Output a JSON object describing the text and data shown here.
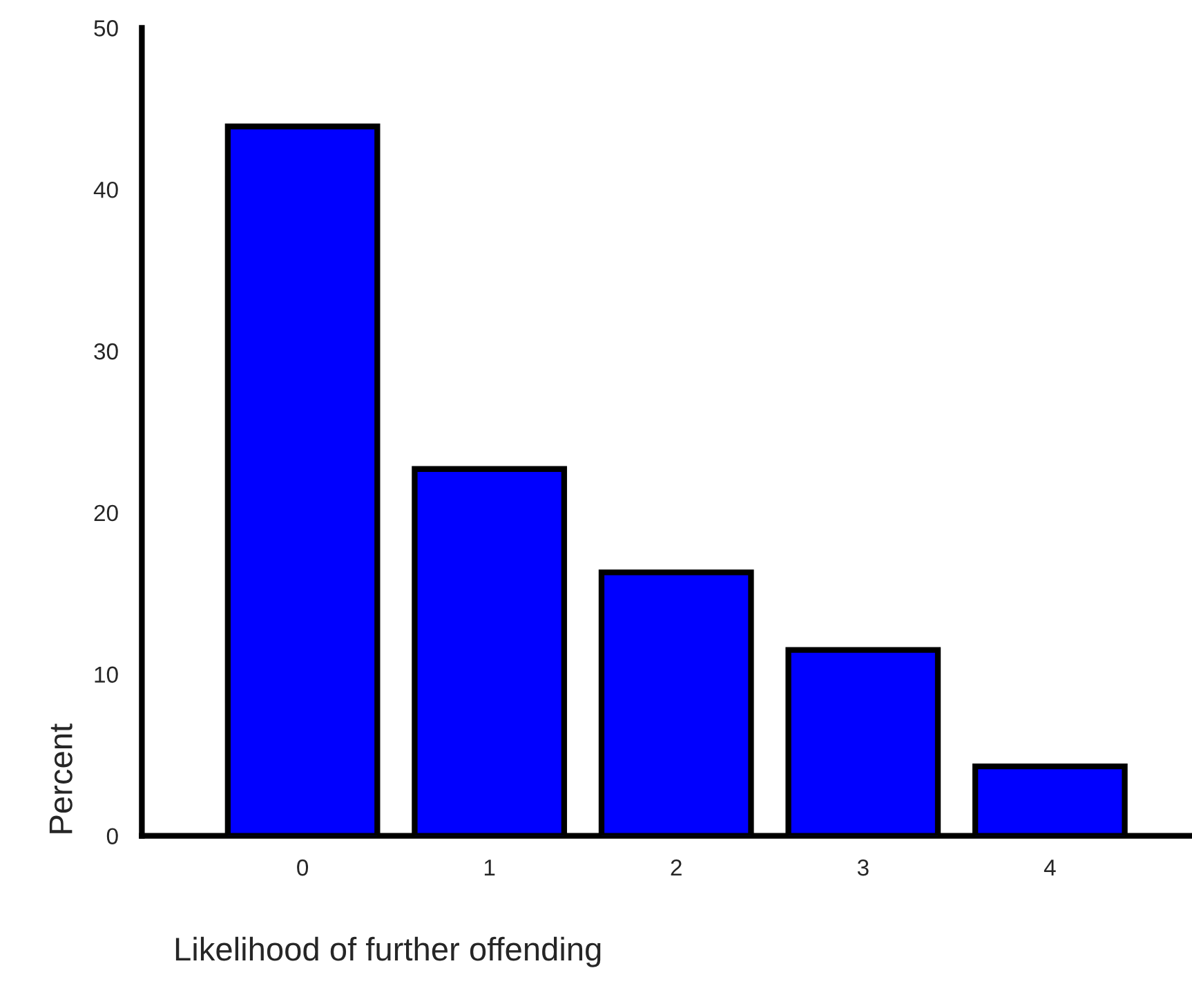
{
  "chart_data": {
    "type": "bar",
    "xlabel": "Likelihood of further offending",
    "ylabel": "Percent",
    "categories": [
      "0",
      "1",
      "2",
      "3",
      "4"
    ],
    "values": [
      43.9,
      22.7,
      16.3,
      11.5,
      4.3
    ],
    "color": "#0000ff",
    "ylim": [
      0,
      50
    ],
    "yticks": [
      0,
      10,
      20,
      30,
      40,
      50
    ],
    "grid": false,
    "legend": false
  }
}
